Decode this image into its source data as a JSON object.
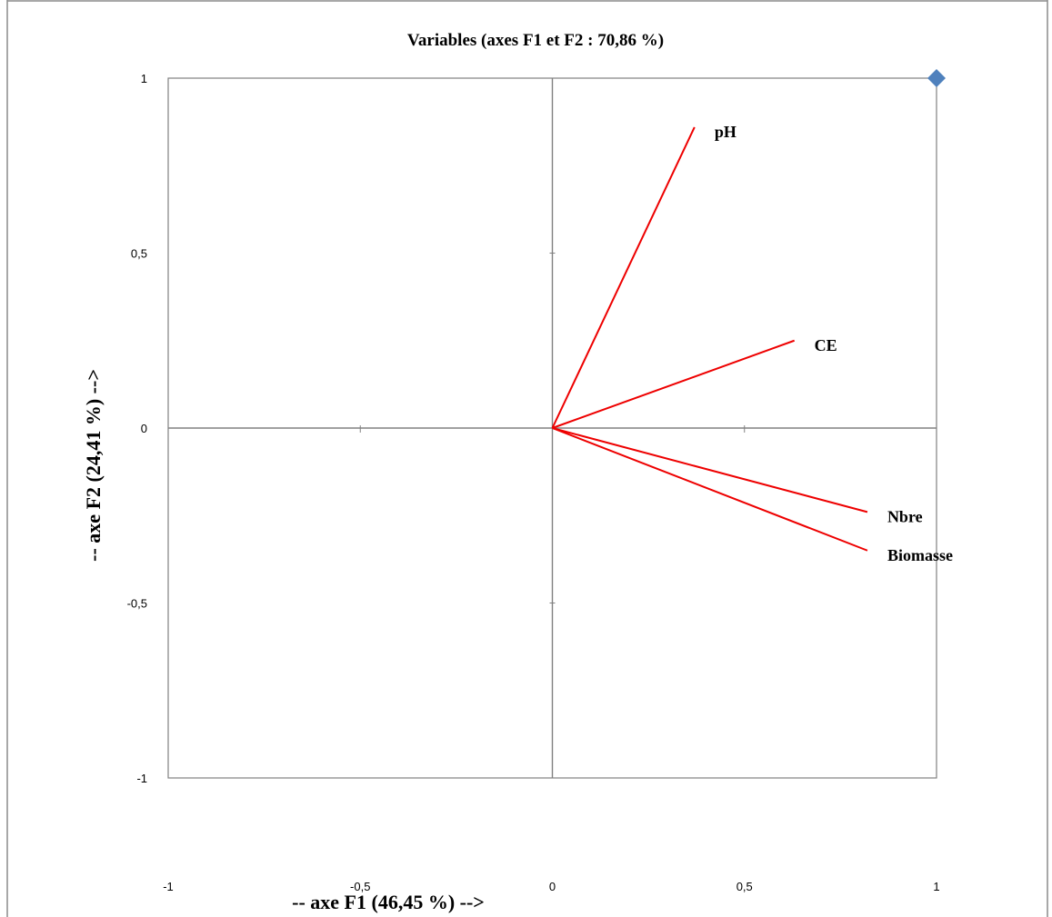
{
  "chart_data": {
    "type": "scatter",
    "title": "Variables (axes F1 et F2 : 70,86 %)",
    "xlabel": "-- axe F1 (46,45 %) -->",
    "ylabel": "-- axe F2 (24,41 %) -->",
    "xlim": [
      -1,
      1
    ],
    "ylim": [
      -1,
      1
    ],
    "x_ticks": [
      {
        "value": -1,
        "label": "-1"
      },
      {
        "value": -0.5,
        "label": "-0,5"
      },
      {
        "value": 0,
        "label": "0"
      },
      {
        "value": 0.5,
        "label": "0,5"
      },
      {
        "value": 1,
        "label": "1"
      }
    ],
    "y_ticks": [
      {
        "value": 1,
        "label": "1"
      },
      {
        "value": 0.5,
        "label": "0,5"
      },
      {
        "value": 0,
        "label": "0"
      },
      {
        "value": -0.5,
        "label": "-0,5"
      },
      {
        "value": -1,
        "label": "-1"
      }
    ],
    "grid": false,
    "vectors": [
      {
        "label": "pH",
        "x": 0.37,
        "y": 0.86
      },
      {
        "label": "CE",
        "x": 0.63,
        "y": 0.25
      },
      {
        "label": "Nbre",
        "x": 0.82,
        "y": -0.24
      },
      {
        "label": "Biomasse",
        "x": 0.82,
        "y": -0.35
      }
    ],
    "points": [
      {
        "x": 1,
        "y": 1
      }
    ],
    "vector_color": "#ee0000",
    "point_color": "#4f81bd",
    "axis_color": "#808080"
  }
}
